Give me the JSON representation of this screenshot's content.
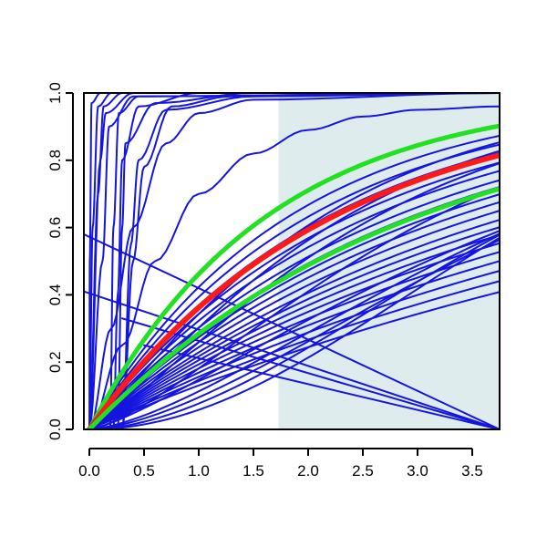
{
  "chart_data": {
    "type": "line",
    "title": "",
    "xlabel": "",
    "ylabel": "",
    "xlim": [
      -0.05,
      3.75
    ],
    "ylim": [
      0,
      1
    ],
    "x_ticks": [
      0.0,
      0.5,
      1.0,
      1.5,
      2.0,
      2.5,
      3.0,
      3.5
    ],
    "x_tick_labels": [
      "0.0",
      "0.5",
      "1.0",
      "1.5",
      "2.0",
      "2.5",
      "3.0",
      "3.5"
    ],
    "y_ticks": [
      0.0,
      0.2,
      0.4,
      0.6,
      0.8,
      1.0
    ],
    "y_tick_labels": [
      "0.0",
      "0.2",
      "0.4",
      "0.6",
      "0.8",
      "1.0"
    ],
    "shaded_region": {
      "x_from": 1.73,
      "x_to": 3.75,
      "color": "#dfeced"
    },
    "colors": {
      "curves": "#1515e0",
      "highlight": "#ff1a1a",
      "bounds": "#22e022",
      "axis": "#000000"
    },
    "curves": [
      {
        "kind": "step",
        "color": "blue",
        "points": [
          [
            0,
            0
          ],
          [
            0.004,
            0.5
          ],
          [
            0.02,
            0.97
          ],
          [
            0.1,
            1
          ],
          [
            3.75,
            1
          ]
        ]
      },
      {
        "kind": "step",
        "color": "blue",
        "points": [
          [
            0,
            0
          ],
          [
            0.03,
            0.6
          ],
          [
            0.08,
            0.96
          ],
          [
            0.2,
            1
          ],
          [
            3.75,
            1
          ]
        ]
      },
      {
        "kind": "step",
        "color": "blue",
        "points": [
          [
            0,
            0
          ],
          [
            0.08,
            0.7
          ],
          [
            0.13,
            0.96
          ],
          [
            0.3,
            1
          ],
          [
            3.75,
            1
          ]
        ]
      },
      {
        "kind": "step",
        "color": "blue",
        "points": [
          [
            0,
            0
          ],
          [
            0.1,
            0.8
          ],
          [
            0.15,
            0.94
          ],
          [
            0.4,
            1
          ],
          [
            3.75,
            1
          ]
        ]
      },
      {
        "kind": "step",
        "color": "blue",
        "points": [
          [
            0,
            0
          ],
          [
            0.12,
            0.5
          ],
          [
            0.18,
            0.9
          ],
          [
            0.4,
            0.99
          ],
          [
            3.75,
            1
          ]
        ]
      },
      {
        "kind": "step",
        "color": "blue",
        "points": [
          [
            0.19,
            0
          ],
          [
            0.22,
            0.6
          ],
          [
            0.27,
            0.94
          ],
          [
            0.45,
            0.99
          ],
          [
            3.75,
            1
          ]
        ]
      },
      {
        "kind": "step",
        "color": "blue",
        "points": [
          [
            0.22,
            0
          ],
          [
            0.26,
            0.4
          ],
          [
            0.3,
            0.8
          ],
          [
            0.45,
            0.96
          ],
          [
            1.0,
            1
          ],
          [
            3.75,
            1
          ]
        ]
      },
      {
        "kind": "step",
        "color": "blue",
        "points": [
          [
            0.26,
            0
          ],
          [
            0.3,
            0.6
          ],
          [
            0.33,
            0.85
          ],
          [
            0.6,
            0.97
          ],
          [
            1.5,
            1
          ],
          [
            3.75,
            1
          ]
        ]
      },
      {
        "kind": "step",
        "color": "blue",
        "points": [
          [
            0.3,
            0
          ],
          [
            0.38,
            0.55
          ],
          [
            0.45,
            0.8
          ],
          [
            0.7,
            0.95
          ],
          [
            1.5,
            0.99
          ],
          [
            3.75,
            1
          ]
        ]
      },
      {
        "kind": "step",
        "color": "blue",
        "points": [
          [
            0.3,
            0
          ],
          [
            0.4,
            0.5
          ],
          [
            0.5,
            0.78
          ],
          [
            0.75,
            0.96
          ],
          [
            1.3,
            0.99
          ],
          [
            3.75,
            1
          ]
        ]
      },
      {
        "kind": "step",
        "color": "blue",
        "points": [
          [
            0,
            0
          ],
          [
            0.2,
            0.3
          ],
          [
            0.4,
            0.6
          ],
          [
            0.7,
            0.85
          ],
          [
            1.0,
            0.94
          ],
          [
            1.5,
            0.98
          ],
          [
            3.75,
            1
          ]
        ]
      },
      {
        "kind": "step",
        "color": "blue",
        "points": [
          [
            0,
            0
          ],
          [
            0.3,
            0.25
          ],
          [
            0.6,
            0.5
          ],
          [
            1.0,
            0.7
          ],
          [
            1.5,
            0.82
          ],
          [
            2.0,
            0.89
          ],
          [
            2.5,
            0.93
          ],
          [
            3.0,
            0.95
          ],
          [
            3.75,
            0.96
          ]
        ]
      },
      {
        "kind": "line",
        "color": "blue",
        "points": [
          [
            -0.05,
            0.58
          ],
          [
            3.75,
            0
          ]
        ]
      },
      {
        "kind": "line",
        "color": "blue",
        "points": [
          [
            -0.05,
            0.41
          ],
          [
            3.75,
            0
          ]
        ]
      },
      {
        "kind": "line",
        "color": "blue",
        "points": [
          [
            0.3,
            0.33
          ],
          [
            3.75,
            0
          ]
        ]
      },
      {
        "kind": "line",
        "color": "blue",
        "points": [
          [
            0.5,
            0.25
          ],
          [
            3.75,
            0
          ]
        ]
      },
      {
        "kind": "sat",
        "color": "blue",
        "k": 0.55,
        "p": 1.0
      },
      {
        "kind": "sat",
        "color": "blue",
        "k": 0.5,
        "p": 1.0
      },
      {
        "kind": "sat",
        "color": "blue",
        "k": 0.46,
        "p": 1.0
      },
      {
        "kind": "sat",
        "color": "blue",
        "k": 0.42,
        "p": 1.0
      },
      {
        "kind": "sat",
        "color": "blue",
        "k": 0.39,
        "p": 1.0
      },
      {
        "kind": "sat",
        "color": "blue",
        "k": 0.36,
        "p": 1.0
      },
      {
        "kind": "sat",
        "color": "blue",
        "k": 0.34,
        "p": 1.0
      },
      {
        "kind": "sat",
        "color": "blue",
        "k": 0.32,
        "p": 1.0
      },
      {
        "kind": "sat",
        "color": "blue",
        "k": 0.3,
        "p": 1.0
      },
      {
        "kind": "sat",
        "color": "blue",
        "k": 0.28,
        "p": 1.0
      },
      {
        "kind": "sat",
        "color": "blue",
        "k": 0.26,
        "p": 1.0
      },
      {
        "kind": "sat",
        "color": "blue",
        "k": 0.245,
        "p": 1.0
      },
      {
        "kind": "sat",
        "color": "blue",
        "k": 0.23,
        "p": 1.0
      },
      {
        "kind": "sat",
        "color": "blue",
        "k": 0.215,
        "p": 1.0
      },
      {
        "kind": "sat",
        "color": "blue",
        "k": 0.2,
        "p": 1.0
      },
      {
        "kind": "sat",
        "color": "blue",
        "k": 0.185,
        "p": 1.0
      },
      {
        "kind": "sat",
        "color": "blue",
        "k": 0.17,
        "p": 1.0
      },
      {
        "kind": "sat",
        "color": "blue",
        "k": 0.155,
        "p": 1.0
      },
      {
        "kind": "sat",
        "color": "blue",
        "k": 0.14,
        "p": 1.0
      },
      {
        "kind": "sat",
        "color": "blue",
        "k": 0.2,
        "p": 1.4
      },
      {
        "kind": "sat",
        "color": "blue",
        "k": 0.16,
        "p": 1.3
      },
      {
        "kind": "sat",
        "color": "blue",
        "k": 0.12,
        "p": 1.5
      },
      {
        "kind": "sat",
        "color": "blue",
        "k": 0.1,
        "p": 1.6
      },
      {
        "kind": "sat",
        "color": "blue",
        "k": 0.08,
        "p": 1.8
      },
      {
        "kind": "sat",
        "color": "blue",
        "k": 0.06,
        "p": 2.0
      },
      {
        "kind": "sat",
        "color": "blue",
        "k": 0.42,
        "p": 1.15
      },
      {
        "kind": "sat",
        "color": "blue",
        "k": 0.36,
        "p": 1.2
      },
      {
        "kind": "sat",
        "color": "blue",
        "k": 0.3,
        "p": 1.25
      },
      {
        "kind": "sat",
        "color": "green",
        "k": 0.62,
        "p": 1.0
      },
      {
        "kind": "sat",
        "color": "red",
        "k": 0.45,
        "p": 1.0
      },
      {
        "kind": "sat",
        "color": "green",
        "k": 0.335,
        "p": 1.0
      }
    ]
  }
}
